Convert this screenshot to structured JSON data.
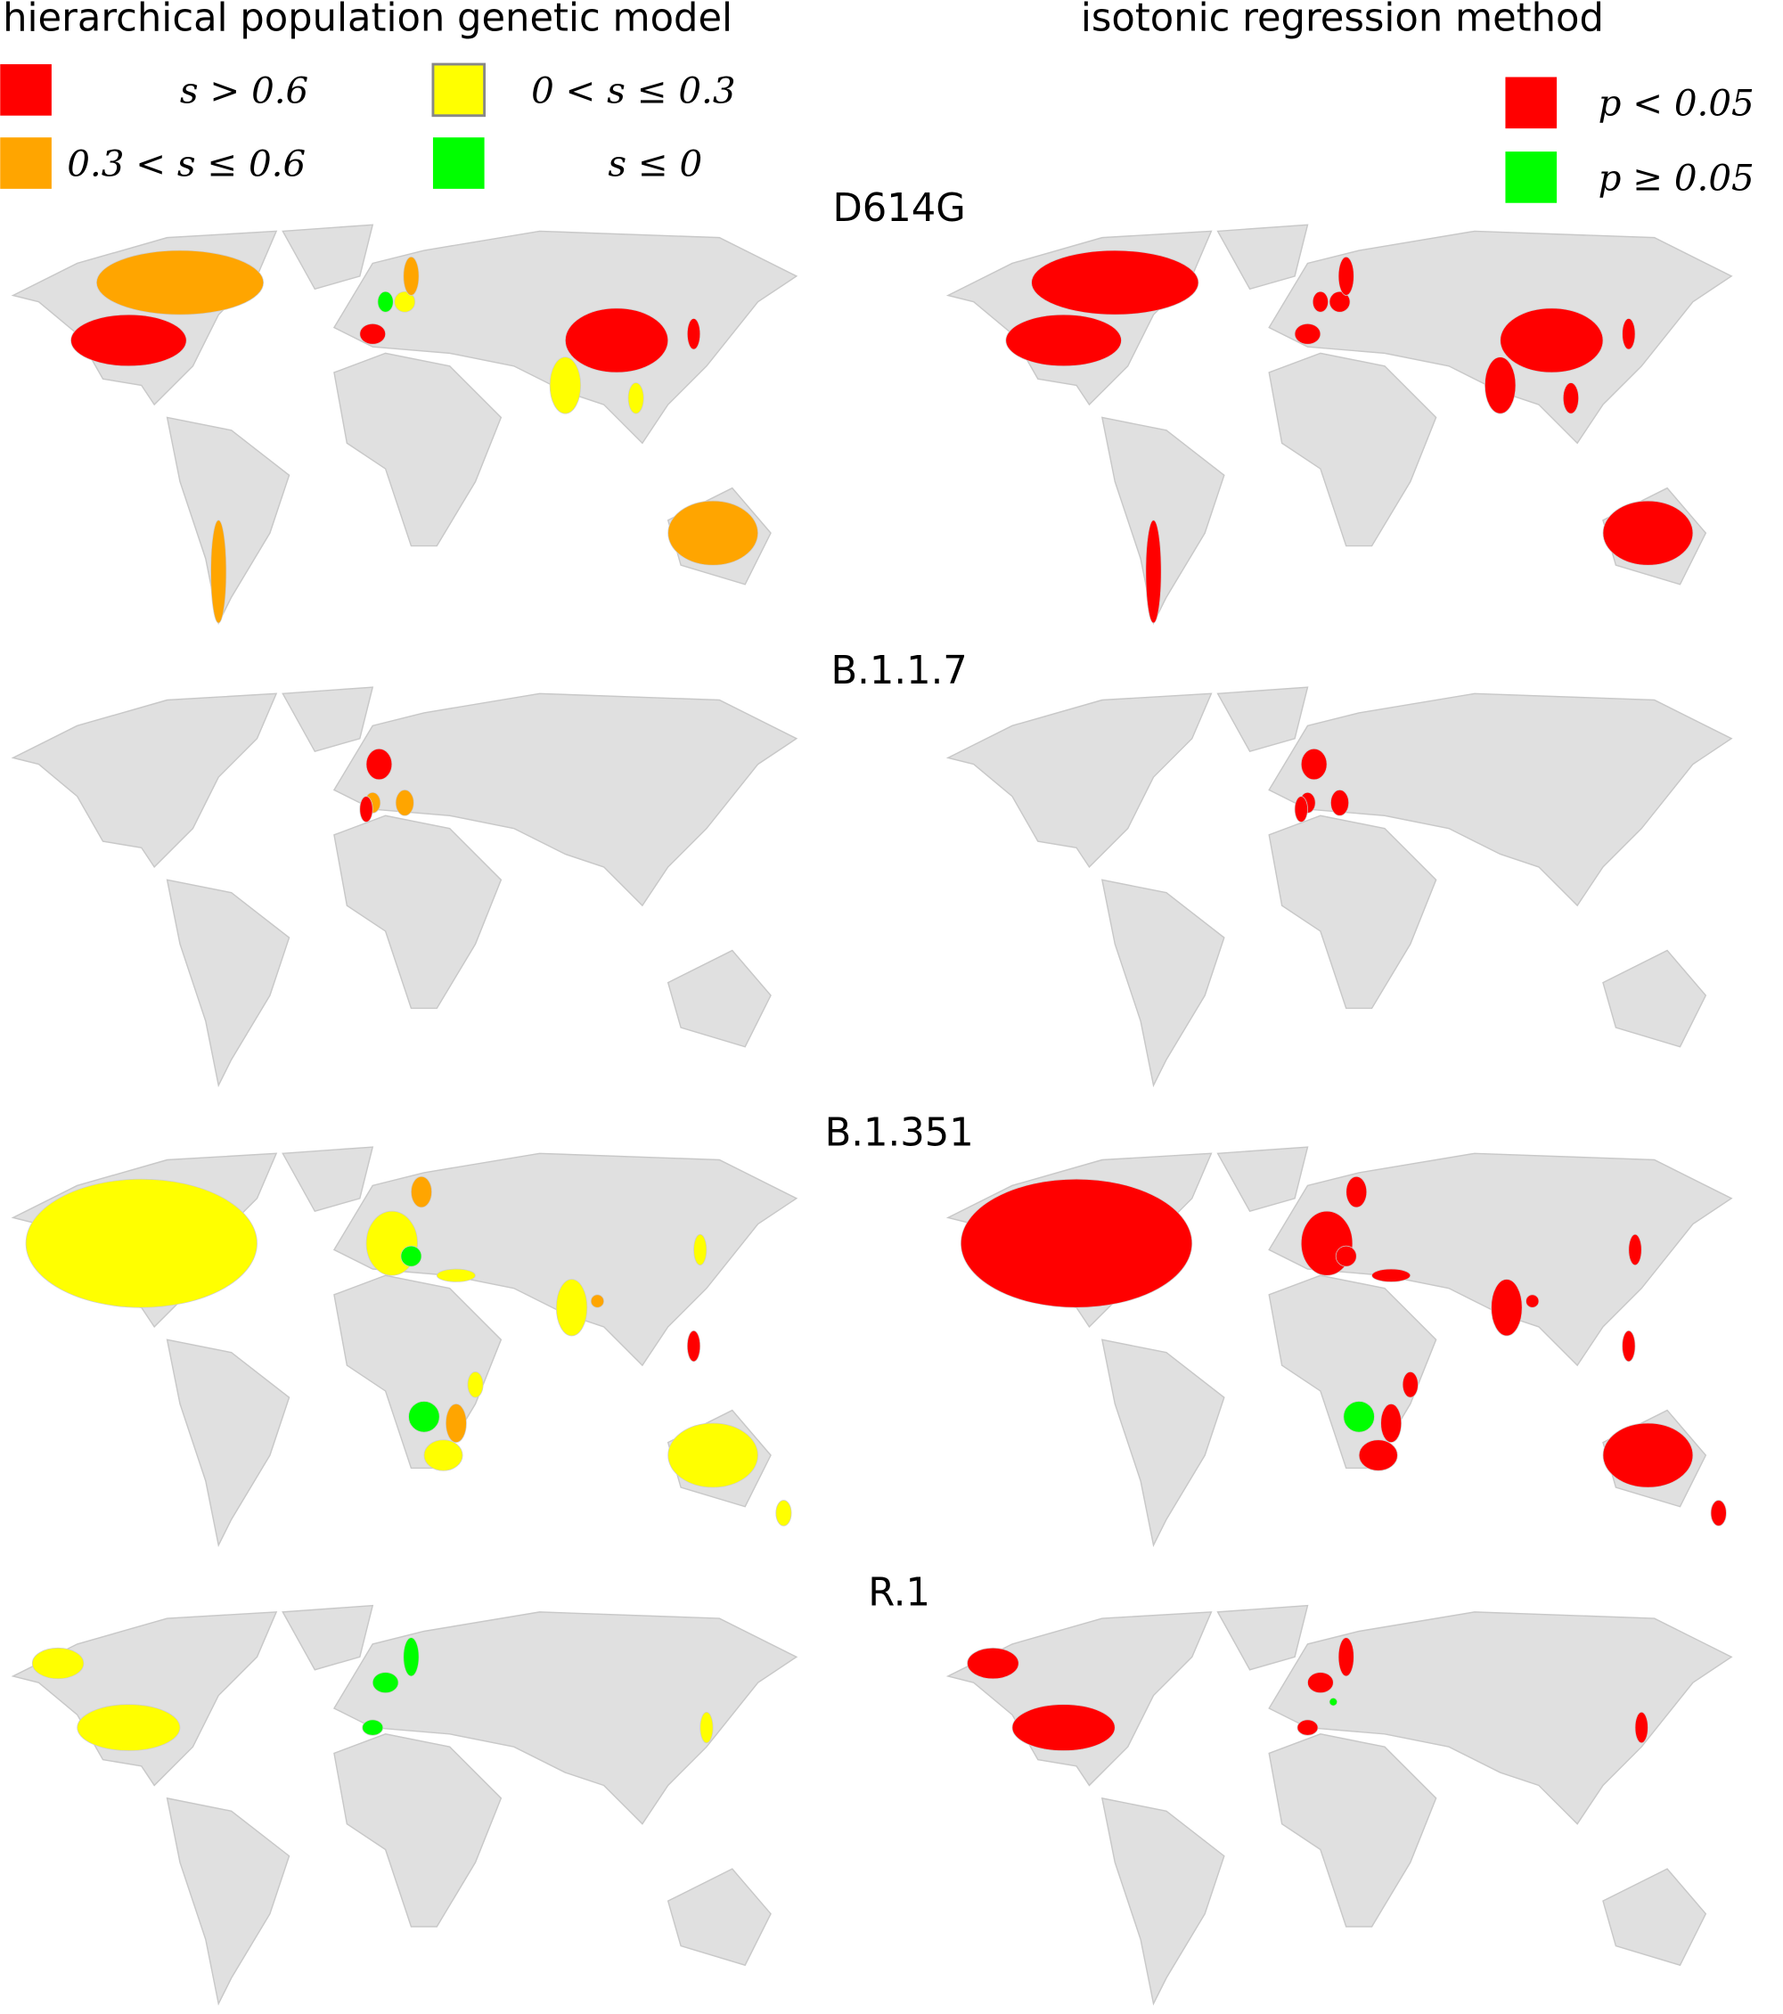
{
  "left_title": "hierarchical population genetic model",
  "right_title": "isotonic regression method",
  "legend_left": [
    {
      "label": "s > 0.6",
      "color": "#ff0000"
    },
    {
      "label": "0.3 < s ≤ 0.6",
      "color": "#ffa500"
    },
    {
      "label": "0 < s ≤ 0.3",
      "color": "#ffff00"
    },
    {
      "label": "s ≤ 0",
      "color": "#00ff00"
    }
  ],
  "legend_right": [
    {
      "label": "p < 0.05",
      "color": "#ff0000"
    },
    {
      "label": "p ≥ 0.05",
      "color": "#00ff00"
    }
  ],
  "maps": [
    {
      "variant": "D614G"
    },
    {
      "variant": "B.1.1.7"
    },
    {
      "variant": "B.1.351"
    },
    {
      "variant": "R.1"
    }
  ]
}
